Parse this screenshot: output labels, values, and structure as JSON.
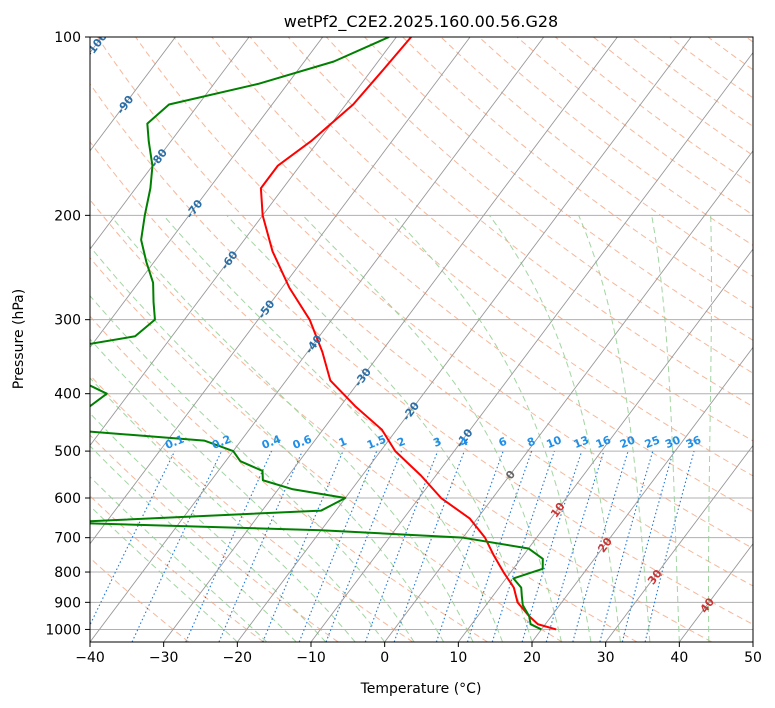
{
  "chart_data": {
    "type": "line",
    "title": "wetPf2_C2E2.2025.160.00.56.G28",
    "xlabel": "Temperature (°C)",
    "ylabel": "Pressure (hPa)",
    "xlim": [
      -40,
      50
    ],
    "ylim": [
      1050,
      100
    ],
    "yscale": "log",
    "x_ticks": [
      -40,
      -30,
      -20,
      -10,
      0,
      10,
      20,
      30,
      40,
      50
    ],
    "y_ticks": [
      100,
      200,
      300,
      400,
      500,
      600,
      700,
      800,
      900,
      1000
    ],
    "grid": true,
    "colors": {
      "temperature": "#ff0000",
      "dewpoint": "#008000",
      "isotherm": "#999999",
      "dry_adiabat": "#f4a582",
      "moist_adiabat": "#98d098",
      "mixing_ratio": "#1f77d4",
      "mixing_ratio_label": "#1f8fe8",
      "temp_label_blue": "#2a6fa8",
      "temp_label_gray": "#666666",
      "temp_label_red": "#cc3333"
    },
    "isotherm_labels": [
      {
        "text": "-100",
        "t": -100,
        "p": 103
      },
      {
        "text": "-90",
        "t": -90,
        "p": 130
      },
      {
        "text": "-80",
        "t": -80,
        "p": 160
      },
      {
        "text": "-70",
        "t": -70,
        "p": 195
      },
      {
        "text": "-60",
        "t": -60,
        "p": 238
      },
      {
        "text": "-50",
        "t": -50,
        "p": 288
      },
      {
        "text": "-40",
        "t": -40,
        "p": 330
      },
      {
        "text": "-30",
        "t": -30,
        "p": 375
      },
      {
        "text": "-20",
        "t": -20,
        "p": 428
      },
      {
        "text": "-10",
        "t": -10,
        "p": 475
      },
      {
        "text": "0",
        "t": 0,
        "p": 548
      },
      {
        "text": "10",
        "t": 10,
        "p": 628
      },
      {
        "text": "20",
        "t": 20,
        "p": 720
      },
      {
        "text": "30",
        "t": 30,
        "p": 815
      },
      {
        "text": "40",
        "t": 40,
        "p": 910
      }
    ],
    "mixing_ratio_labels": [
      {
        "text": "0.1",
        "w": 0.1
      },
      {
        "text": "0.2",
        "w": 0.2
      },
      {
        "text": "0.4",
        "w": 0.4
      },
      {
        "text": "0.6",
        "w": 0.6
      },
      {
        "text": "1",
        "w": 1
      },
      {
        "text": "1.5",
        "w": 1.5
      },
      {
        "text": "2",
        "w": 2
      },
      {
        "text": "3",
        "w": 3
      },
      {
        "text": "4",
        "w": 4
      },
      {
        "text": "6",
        "w": 6
      },
      {
        "text": "8",
        "w": 8
      },
      {
        "text": "10",
        "w": 10
      },
      {
        "text": "13",
        "w": 13
      },
      {
        "text": "16",
        "w": 16
      },
      {
        "text": "20",
        "w": 20
      },
      {
        "text": "25",
        "w": 25
      },
      {
        "text": "30",
        "w": 30
      },
      {
        "text": "36",
        "w": 36
      }
    ],
    "series": [
      {
        "role": "temperature",
        "points": [
          [
            -58,
            100
          ],
          [
            -58.5,
            115
          ],
          [
            -59,
            130
          ],
          [
            -61,
            150
          ],
          [
            -63,
            165
          ],
          [
            -63,
            180
          ],
          [
            -60,
            200
          ],
          [
            -55,
            230
          ],
          [
            -49,
            265
          ],
          [
            -43,
            300
          ],
          [
            -38,
            340
          ],
          [
            -34,
            380
          ],
          [
            -28,
            420
          ],
          [
            -22,
            460
          ],
          [
            -18,
            500
          ],
          [
            -12,
            550
          ],
          [
            -7,
            600
          ],
          [
            -1,
            650
          ],
          [
            3,
            700
          ],
          [
            6,
            750
          ],
          [
            9,
            800
          ],
          [
            12,
            850
          ],
          [
            14,
            900
          ],
          [
            17,
            950
          ],
          [
            19,
            980
          ],
          [
            22,
            1000
          ]
        ]
      },
      {
        "role": "dewpoint",
        "points": [
          [
            -61,
            100
          ],
          [
            -66,
            110
          ],
          [
            -74,
            120
          ],
          [
            -84,
            130
          ],
          [
            -85,
            140
          ],
          [
            -83,
            150
          ],
          [
            -80,
            165
          ],
          [
            -78,
            180
          ],
          [
            -76,
            200
          ],
          [
            -74,
            220
          ],
          [
            -71,
            240
          ],
          [
            -68,
            260
          ],
          [
            -66,
            280
          ],
          [
            -64,
            300
          ],
          [
            -65,
            320
          ],
          [
            -76,
            340
          ],
          [
            -77,
            360
          ],
          [
            -68,
            380
          ],
          [
            -63,
            400
          ],
          [
            -64,
            420
          ],
          [
            -79,
            440
          ],
          [
            -65,
            460
          ],
          [
            -45,
            480
          ],
          [
            -40,
            500
          ],
          [
            -38,
            520
          ],
          [
            -34,
            540
          ],
          [
            -33,
            560
          ],
          [
            -28,
            580
          ],
          [
            -20,
            600
          ],
          [
            -22,
            630
          ],
          [
            -56,
            660
          ],
          [
            -20,
            680
          ],
          [
            0,
            700
          ],
          [
            10,
            730
          ],
          [
            13,
            760
          ],
          [
            14,
            790
          ],
          [
            11,
            820
          ],
          [
            13,
            850
          ],
          [
            14,
            880
          ],
          [
            15,
            910
          ],
          [
            17,
            950
          ],
          [
            18,
            980
          ],
          [
            20,
            1000
          ]
        ]
      }
    ]
  }
}
